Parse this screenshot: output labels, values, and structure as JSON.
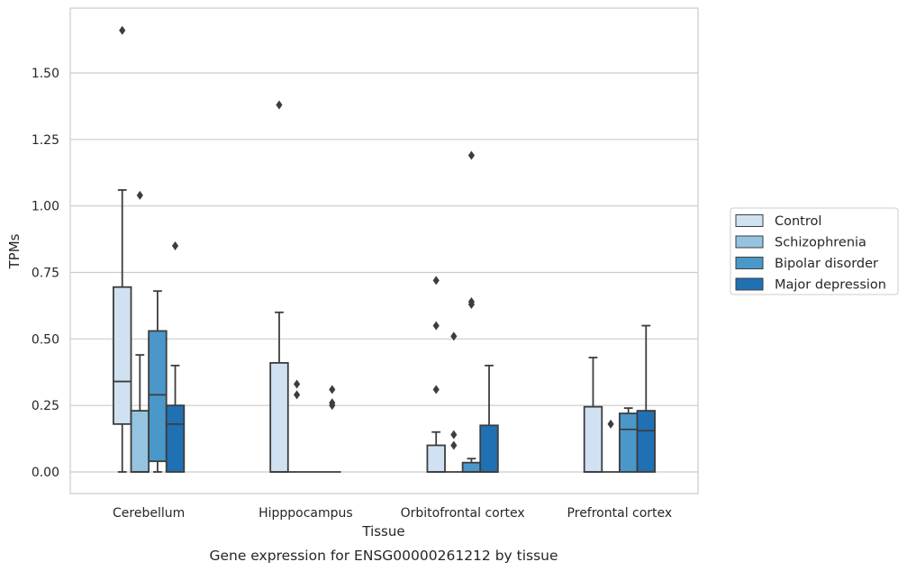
{
  "chart_data": {
    "type": "box",
    "caption": "Gene expression for ENSG00000261212 by tissue",
    "xlabel": "Tissue",
    "ylabel": "TPMs",
    "ylim": [
      -0.08,
      1.75
    ],
    "yticks": [
      "0.00",
      "0.25",
      "0.50",
      "0.75",
      "1.00",
      "1.25",
      "1.50"
    ],
    "grid": true,
    "legend_position": "right",
    "categories": [
      "Cerebellum",
      "Hipppocampus",
      "Orbitofrontal cortex",
      "Prefrontal cortex"
    ],
    "series": [
      {
        "name": "Control",
        "color": "#d0e1f2",
        "boxes": [
          {
            "q1": 0.18,
            "median": 0.34,
            "q3": 0.695,
            "whisker_low": 0.0,
            "whisker_high": 1.06,
            "outliers": [
              1.66
            ]
          },
          {
            "q1": 0.0,
            "median": 0.0,
            "q3": 0.41,
            "whisker_low": 0.0,
            "whisker_high": 0.6,
            "outliers": [
              1.38
            ]
          },
          {
            "q1": 0.0,
            "median": 0.0,
            "q3": 0.1,
            "whisker_low": 0.0,
            "whisker_high": 0.15,
            "outliers": [
              0.31,
              0.55,
              0.72
            ]
          },
          {
            "q1": 0.0,
            "median": 0.0,
            "q3": 0.245,
            "whisker_low": 0.0,
            "whisker_high": 0.43,
            "outliers": []
          }
        ]
      },
      {
        "name": "Schizophrenia",
        "color": "#94c4df",
        "boxes": [
          {
            "q1": 0.0,
            "median": 0.0,
            "q3": 0.23,
            "whisker_low": 0.0,
            "whisker_high": 0.44,
            "outliers": [
              1.04
            ]
          },
          {
            "q1": 0.0,
            "median": 0.0,
            "q3": 0.0,
            "whisker_low": 0.0,
            "whisker_high": 0.0,
            "outliers": [
              0.29,
              0.33
            ]
          },
          {
            "q1": 0.0,
            "median": 0.0,
            "q3": 0.0,
            "whisker_low": 0.0,
            "whisker_high": 0.0,
            "outliers": [
              0.1,
              0.14,
              0.51
            ]
          },
          {
            "q1": 0.0,
            "median": 0.0,
            "q3": 0.0,
            "whisker_low": 0.0,
            "whisker_high": 0.0,
            "outliers": [
              0.18
            ]
          }
        ]
      },
      {
        "name": "Bipolar disorder",
        "color": "#4a98c9",
        "boxes": [
          {
            "q1": 0.04,
            "median": 0.29,
            "q3": 0.53,
            "whisker_low": 0.0,
            "whisker_high": 0.68,
            "outliers": []
          },
          {
            "q1": 0.0,
            "median": 0.0,
            "q3": 0.0,
            "whisker_low": 0.0,
            "whisker_high": 0.0,
            "outliers": []
          },
          {
            "q1": 0.0,
            "median": 0.0,
            "q3": 0.035,
            "whisker_low": 0.0,
            "whisker_high": 0.05,
            "outliers": [
              0.63,
              0.64,
              1.19
            ]
          },
          {
            "q1": 0.0,
            "median": 0.16,
            "q3": 0.22,
            "whisker_low": 0.0,
            "whisker_high": 0.24,
            "outliers": []
          }
        ]
      },
      {
        "name": "Major depression",
        "color": "#2070b4",
        "boxes": [
          {
            "q1": 0.0,
            "median": 0.18,
            "q3": 0.25,
            "whisker_low": 0.0,
            "whisker_high": 0.4,
            "outliers": [
              0.85
            ]
          },
          {
            "q1": 0.0,
            "median": 0.0,
            "q3": 0.0,
            "whisker_low": 0.0,
            "whisker_high": 0.0,
            "outliers": [
              0.25,
              0.26,
              0.31
            ]
          },
          {
            "q1": 0.0,
            "median": 0.0,
            "q3": 0.175,
            "whisker_low": 0.0,
            "whisker_high": 0.4,
            "outliers": []
          },
          {
            "q1": 0.0,
            "median": 0.155,
            "q3": 0.23,
            "whisker_low": 0.0,
            "whisker_high": 0.55,
            "outliers": []
          }
        ]
      }
    ]
  }
}
